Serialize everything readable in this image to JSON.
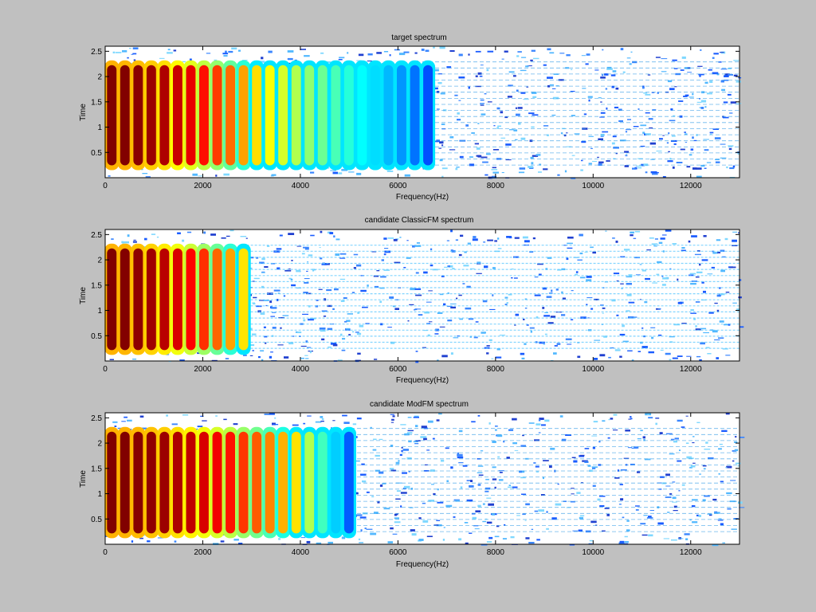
{
  "figure": {
    "background": "#c0c0c0",
    "colormap": "jet"
  },
  "chart_data": [
    {
      "type": "heatmap",
      "title": "target spectrum",
      "xlabel": "Frequency(Hz)",
      "ylabel": "Time",
      "xlim": [
        0,
        13000
      ],
      "ylim": [
        0,
        2.6
      ],
      "xticks": [
        0,
        2000,
        4000,
        6000,
        8000,
        10000,
        12000
      ],
      "yticks": [
        0.5,
        1,
        1.5,
        2,
        2.5
      ],
      "xtick_labels": [
        "0",
        "2000",
        "4000",
        "6000",
        "8000",
        "10000",
        "12000"
      ],
      "ytick_labels": [
        "0.5",
        "1",
        "1.5",
        "2",
        "2.5"
      ],
      "harmonic_spacing_hz": 270,
      "strong_band_limit_hz": 3000,
      "visible_band_limit_hz": 6500,
      "noise_floor_limit_hz": 13000,
      "sustain_time": [
        0.15,
        2.32
      ]
    },
    {
      "type": "heatmap",
      "title": "candidate ClassicFM spectrum",
      "xlabel": "Frequency(Hz)",
      "ylabel": "Time",
      "xlim": [
        0,
        13000
      ],
      "ylim": [
        0,
        2.6
      ],
      "xticks": [
        0,
        2000,
        4000,
        6000,
        8000,
        10000,
        12000
      ],
      "yticks": [
        0.5,
        1,
        1.5,
        2,
        2.5
      ],
      "xtick_labels": [
        "0",
        "2000",
        "4000",
        "6000",
        "8000",
        "10000",
        "12000"
      ],
      "ytick_labels": [
        "0.5",
        "1",
        "1.5",
        "2",
        "2.5"
      ],
      "harmonic_spacing_hz": 270,
      "strong_band_limit_hz": 2700,
      "visible_band_limit_hz": 2900,
      "noise_floor_limit_hz": 13000,
      "sustain_time": [
        0.12,
        2.32
      ]
    },
    {
      "type": "heatmap",
      "title": "candidate ModFM spectrum",
      "xlabel": "Frequency(Hz)",
      "ylabel": "Time",
      "xlim": [
        0,
        13000
      ],
      "ylim": [
        0,
        2.6
      ],
      "xticks": [
        0,
        2000,
        4000,
        6000,
        8000,
        10000,
        12000
      ],
      "yticks": [
        0.5,
        1,
        1.5,
        2,
        2.5
      ],
      "xtick_labels": [
        "0",
        "2000",
        "4000",
        "6000",
        "8000",
        "10000",
        "12000"
      ],
      "ytick_labels": [
        "0.5",
        "1",
        "1.5",
        "2",
        "2.5"
      ],
      "harmonic_spacing_hz": 270,
      "strong_band_limit_hz": 3800,
      "visible_band_limit_hz": 4900,
      "noise_floor_limit_hz": 13000,
      "sustain_time": [
        0.12,
        2.32
      ]
    }
  ]
}
